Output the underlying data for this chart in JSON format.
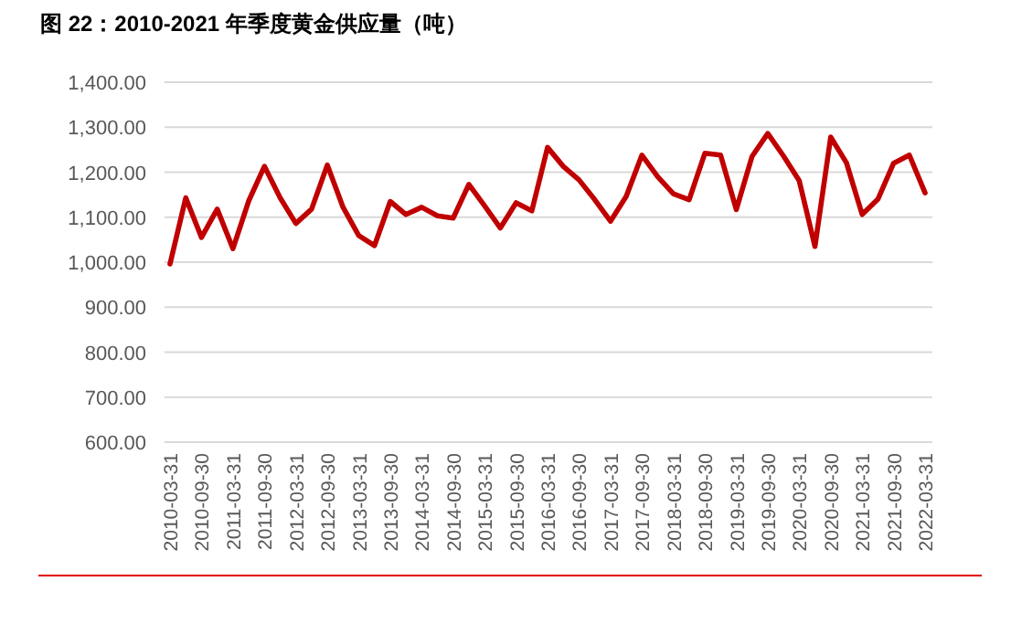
{
  "chart_data": {
    "type": "line",
    "title": "图 22：2010-2021 年季度黄金供应量（吨）",
    "categories": [
      "2010-03-31",
      null,
      "2010-09-30",
      null,
      "2011-03-31",
      null,
      "2011-09-30",
      null,
      "2012-03-31",
      null,
      "2012-09-30",
      null,
      "2013-03-31",
      null,
      "2013-09-30",
      null,
      "2014-03-31",
      null,
      "2014-09-30",
      null,
      "2015-03-31",
      null,
      "2015-09-30",
      null,
      "2016-03-31",
      null,
      "2016-09-30",
      null,
      "2017-03-31",
      null,
      "2017-09-30",
      null,
      "2018-03-31",
      null,
      "2018-09-30",
      null,
      "2019-03-31",
      null,
      "2019-09-30",
      null,
      "2020-03-31",
      null,
      "2020-09-30",
      null,
      "2021-03-31",
      null,
      "2021-09-30",
      null,
      "2022-03-31"
    ],
    "values": [
      996,
      1143,
      1055,
      1118,
      1030,
      1136,
      1213,
      1143,
      1086,
      1118,
      1216,
      1122,
      1059,
      1037,
      1135,
      1106,
      1122,
      1103,
      1098,
      1173,
      1125,
      1076,
      1132,
      1114,
      1255,
      1213,
      1183,
      1139,
      1091,
      1146,
      1238,
      1190,
      1152,
      1139,
      1242,
      1238,
      1117,
      1235,
      1286,
      1236,
      1181,
      1035,
      1278,
      1221,
      1106,
      1140,
      1220,
      1238,
      1154
    ],
    "color": "#c00000",
    "ylim": [
      600,
      1400
    ],
    "yticks": [
      {
        "value": 600,
        "label": "600.00"
      },
      {
        "value": 700,
        "label": "700.00"
      },
      {
        "value": 800,
        "label": "800.00"
      },
      {
        "value": 900,
        "label": "900.00"
      },
      {
        "value": 1000,
        "label": "1,000.00"
      },
      {
        "value": 1100,
        "label": "1,100.00"
      },
      {
        "value": 1200,
        "label": "1,200.00"
      },
      {
        "value": 1300,
        "label": "1,300.00"
      },
      {
        "value": 1400,
        "label": "1,400.00"
      }
    ],
    "grid": "y"
  }
}
